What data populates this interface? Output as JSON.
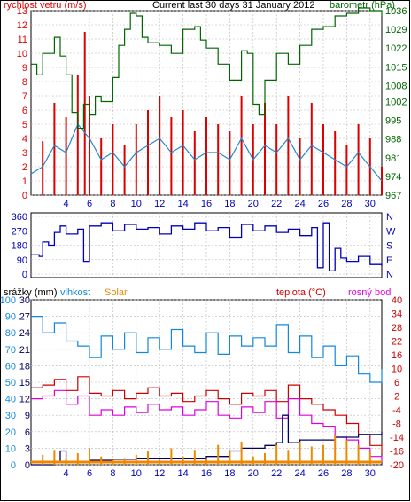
{
  "colors": {
    "wind": "#dd0000",
    "wind_avg": "#2288cc",
    "baro": "#006600",
    "dir": "#0000bb",
    "humidity": "#1188dd",
    "temp": "#cc0000",
    "dew": "#dd00dd",
    "rain": "#000066",
    "solar": "#ee8800",
    "grid": "#b8b8b8",
    "black": "#000000"
  },
  "chart_data": [
    {
      "type": "line",
      "panel": "wind-barometer",
      "title": "Current last 30 days 31 January 2012",
      "ylabel_left": "rychlost vetru (m/s)",
      "ylabel_right": "barometr (hPa)",
      "x_ticks": [
        "4",
        "6",
        "8",
        "10",
        "12",
        "14",
        "16",
        "18",
        "20",
        "22",
        "24",
        "26",
        "28",
        "30"
      ],
      "y_left_ticks": [
        "0",
        "1",
        "2",
        "3",
        "4",
        "5",
        "6",
        "7",
        "8",
        "9",
        "10",
        "11",
        "12",
        "13"
      ],
      "y_right_ticks": [
        "967",
        "974",
        "981",
        "988",
        "995",
        "1002",
        "1008",
        "1015",
        "1022",
        "1029",
        "1036"
      ],
      "ylim_left": [
        0,
        13
      ],
      "ylim_right": [
        967,
        1036
      ],
      "xlim": [
        1,
        31
      ],
      "grid": true,
      "series": [
        {
          "name": "rychlost vetru",
          "key": "wind",
          "axis": "left",
          "x": [
            2,
            3,
            4,
            5,
            5.6,
            6,
            7,
            8,
            9,
            10,
            11,
            12,
            13,
            14,
            15,
            16,
            17,
            18,
            19,
            20,
            21,
            22,
            23,
            24,
            25,
            26,
            27,
            28,
            29,
            30,
            31
          ],
          "y": [
            3.8,
            6.5,
            5.5,
            8.5,
            11.5,
            7,
            4,
            5,
            3.5,
            5,
            6,
            7,
            5.5,
            6,
            4.5,
            5.5,
            5,
            4.5,
            7,
            5,
            6.5,
            5,
            7,
            4,
            6.5,
            5,
            4.5,
            3.5,
            5,
            4,
            2
          ]
        },
        {
          "name": "prumerna rychlost",
          "key": "wind_avg",
          "axis": "left",
          "x": [
            1,
            2,
            3,
            4,
            5,
            6,
            7,
            8,
            9,
            10,
            11,
            12,
            13,
            14,
            15,
            16,
            17,
            18,
            19,
            20,
            21,
            22,
            23,
            24,
            25,
            26,
            27,
            28,
            29,
            30,
            31
          ],
          "y": [
            1.5,
            2,
            3.5,
            3,
            5,
            4,
            2.5,
            3,
            2,
            3,
            3.5,
            4,
            3,
            3.5,
            2.5,
            3,
            3,
            2.5,
            4,
            2.5,
            3.5,
            3,
            4,
            2.5,
            3.5,
            3,
            2.5,
            2,
            3,
            2,
            1
          ]
        },
        {
          "name": "barometr",
          "key": "baro",
          "axis": "right",
          "x": [
            1,
            1.5,
            2,
            3,
            3.5,
            4,
            4.5,
            5,
            5.5,
            6,
            6.5,
            7,
            8,
            8.5,
            9,
            9.5,
            10,
            10.5,
            11,
            12,
            13,
            14,
            15,
            15.5,
            16,
            17,
            18,
            19,
            19.5,
            20,
            20.5,
            21,
            22,
            23,
            24,
            25,
            26,
            27,
            28,
            29,
            30,
            31
          ],
          "y": [
            1016,
            1012,
            1020,
            1026,
            1019,
            1012,
            998,
            992,
            1001,
            997,
            1004,
            1002,
            1011,
            1023,
            1029,
            1035,
            1034,
            1026,
            1024,
            1023,
            1020,
            1029,
            1030,
            1025,
            1022,
            1016,
            1010,
            1021,
            1020,
            1001,
            997,
            1010,
            1020,
            1016,
            1023,
            1029,
            1030,
            1034,
            1035,
            1037,
            1036,
            1034
          ]
        }
      ]
    },
    {
      "type": "line",
      "panel": "wind-direction",
      "y_left_ticks": [
        "0",
        "90",
        "180",
        "270",
        "360"
      ],
      "y_right_ticks": [
        "N",
        "E",
        "S",
        "W",
        "N"
      ],
      "ylim": [
        0,
        360
      ],
      "xlim": [
        1,
        31
      ],
      "grid": true,
      "series": [
        {
          "name": "smer vetru",
          "key": "dir",
          "x": [
            1,
            1.7,
            2,
            2.5,
            3,
            3.5,
            4,
            5,
            5.5,
            6,
            7,
            8,
            9,
            10,
            11,
            12,
            13,
            14,
            15,
            16,
            17,
            18,
            19,
            20,
            21,
            22,
            23,
            24,
            25,
            25.5,
            26,
            26.5,
            27,
            27.5,
            28,
            29,
            30,
            31
          ],
          "y": [
            120,
            110,
            200,
            180,
            260,
            300,
            250,
            280,
            80,
            300,
            320,
            270,
            310,
            280,
            290,
            250,
            300,
            280,
            320,
            270,
            290,
            230,
            310,
            270,
            300,
            260,
            280,
            240,
            290,
            40,
            320,
            20,
            160,
            100,
            80,
            110,
            60,
            50
          ]
        }
      ]
    },
    {
      "type": "line",
      "panel": "rain-humidity-temp",
      "legend": [
        "srážky (mm)",
        "vlhkost",
        "Solar",
        "teplota (°C)",
        "rosný bod"
      ],
      "y_left_ticks_rain": [
        "0",
        "3",
        "6",
        "9",
        "12",
        "15",
        "18",
        "21",
        "24",
        "27",
        "30"
      ],
      "y_left_ticks_humidity": [
        "0",
        "10",
        "20",
        "30",
        "40",
        "50",
        "60",
        "70",
        "80",
        "90",
        "100"
      ],
      "y_right_ticks": [
        "-20",
        "-16",
        "-14",
        "-8",
        "-4",
        "2",
        "6",
        "10",
        "16",
        "22",
        "28",
        "34",
        "40"
      ],
      "ylim_rain": [
        0,
        30
      ],
      "ylim_humidity": [
        0,
        100
      ],
      "ylim_temp": [
        -20,
        40
      ],
      "xlim": [
        1,
        31
      ],
      "grid": true,
      "series": [
        {
          "name": "vlhkost",
          "key": "humidity",
          "axis": "humidity",
          "x": [
            1,
            2,
            3,
            4,
            5,
            6,
            7,
            8,
            9,
            10,
            11,
            12,
            13,
            14,
            15,
            16,
            17,
            18,
            19,
            20,
            21,
            22,
            23,
            24,
            25,
            26,
            27,
            28,
            29,
            30,
            31
          ],
          "y": [
            90,
            80,
            86,
            75,
            72,
            65,
            78,
            70,
            80,
            68,
            77,
            70,
            82,
            72,
            68,
            80,
            67,
            78,
            72,
            77,
            72,
            85,
            68,
            78,
            65,
            72,
            60,
            66,
            55,
            50,
            58
          ]
        },
        {
          "name": "teplota",
          "key": "temp",
          "axis": "temp",
          "x": [
            1,
            2,
            3,
            4,
            5,
            6,
            7,
            8,
            9,
            10,
            11,
            12,
            13,
            14,
            15,
            16,
            17,
            18,
            19,
            20,
            21,
            22,
            23,
            24,
            25,
            26,
            27,
            28,
            29,
            30,
            31
          ],
          "y": [
            8,
            9,
            11,
            7,
            12,
            6,
            5,
            7,
            4,
            6,
            8,
            5,
            6,
            3,
            5,
            7,
            4,
            2,
            6,
            5,
            7,
            3,
            9,
            4,
            2,
            0,
            -2,
            -5,
            -9,
            -13,
            -16
          ]
        },
        {
          "name": "rosný bod",
          "key": "dew",
          "axis": "temp",
          "x": [
            1,
            2,
            3,
            4,
            5,
            6,
            7,
            8,
            9,
            10,
            11,
            12,
            13,
            14,
            15,
            16,
            17,
            18,
            19,
            20,
            21,
            22,
            23,
            24,
            25,
            26,
            27,
            28,
            29,
            30,
            31
          ],
          "y": [
            4,
            5,
            7,
            2,
            5,
            -2,
            0,
            -2,
            1,
            -1,
            2,
            0,
            1,
            -2,
            0,
            3,
            -2,
            -3,
            1,
            -1,
            3,
            -3,
            4,
            -2,
            -5,
            -6,
            -10,
            -11,
            -14,
            -17,
            -19
          ]
        },
        {
          "name": "srážky",
          "key": "rain",
          "axis": "rain",
          "x": [
            1,
            3,
            3.5,
            4,
            6,
            8,
            10,
            12,
            14,
            16,
            18,
            19,
            20,
            21,
            22,
            22.5,
            23,
            24,
            25,
            26,
            27,
            28,
            29,
            30,
            31
          ],
          "y": [
            0,
            0.5,
            2.5,
            0.5,
            0.8,
            1,
            1.2,
            1.2,
            1.2,
            1.5,
            2.5,
            3,
            3,
            3.5,
            4,
            9,
            4,
            4.5,
            4.5,
            4.5,
            5,
            5,
            5.5,
            5.5,
            6
          ]
        },
        {
          "name": "Solar",
          "key": "solar",
          "axis": "humidity",
          "x": [
            2,
            3,
            4,
            5,
            6,
            7,
            8,
            9,
            10,
            11,
            12,
            13,
            14,
            15,
            16,
            17,
            18,
            19,
            20,
            21,
            22,
            23,
            24,
            25,
            26,
            27,
            28,
            29,
            30
          ],
          "y": [
            6,
            9,
            4,
            7,
            10,
            5,
            3,
            4,
            6,
            8,
            3,
            10,
            5,
            9,
            4,
            12,
            8,
            14,
            5,
            7,
            12,
            9,
            14,
            11,
            12,
            18,
            15,
            12,
            8
          ]
        }
      ]
    }
  ]
}
